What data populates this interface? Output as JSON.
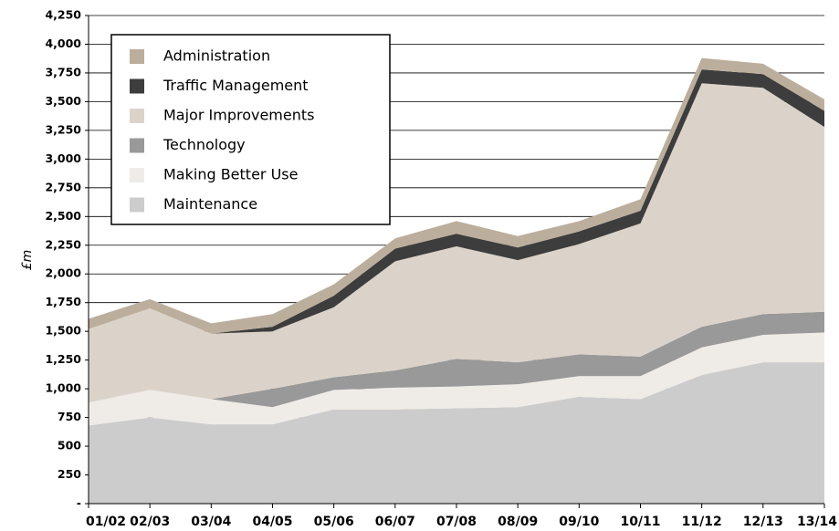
{
  "chart_data": {
    "type": "stacked_area",
    "y_label": "£m",
    "categories": [
      "01/02",
      "02/03",
      "03/04",
      "04/05",
      "05/06",
      "06/07",
      "07/08",
      "08/09",
      "09/10",
      "10/11",
      "11/12",
      "12/13",
      "13/14"
    ],
    "series": [
      {
        "name": "Maintenance",
        "color": "#cccccc",
        "values": [
          680,
          750,
          690,
          690,
          820,
          820,
          830,
          840,
          930,
          910,
          1120,
          1230,
          1230
        ]
      },
      {
        "name": "Making Better Use",
        "color": "#efebe7",
        "values": [
          200,
          240,
          220,
          150,
          170,
          190,
          190,
          200,
          180,
          200,
          240,
          240,
          260
        ]
      },
      {
        "name": "Technology",
        "color": "#999999",
        "values": [
          0,
          0,
          0,
          160,
          110,
          150,
          240,
          190,
          190,
          170,
          180,
          180,
          180
        ]
      },
      {
        "name": "Major Improvements",
        "color": "#dbd3ca",
        "values": [
          640,
          710,
          570,
          500,
          610,
          950,
          980,
          890,
          960,
          1160,
          2120,
          1970,
          1610
        ]
      },
      {
        "name": "Traffic Management",
        "color": "#3d3d3d",
        "values": [
          0,
          0,
          0,
          40,
          100,
          110,
          110,
          110,
          110,
          110,
          120,
          120,
          140
        ]
      },
      {
        "name": "Administration",
        "color": "#bcae9c",
        "values": [
          90,
          80,
          90,
          110,
          100,
          90,
          110,
          100,
          90,
          100,
          100,
          90,
          100
        ]
      }
    ],
    "ylim": [
      0,
      4250
    ],
    "yticks": [
      {
        "value": 0,
        "label": "-"
      },
      250,
      500,
      750,
      {
        "value": 1000,
        "label": "1,000"
      },
      {
        "value": 1250,
        "label": "1,250"
      },
      {
        "value": 1500,
        "label": "1,500"
      },
      {
        "value": 1750,
        "label": "1,750"
      },
      {
        "value": 2000,
        "label": "2,000"
      },
      {
        "value": 2250,
        "label": "2,250"
      },
      {
        "value": 2500,
        "label": "2,500"
      },
      {
        "value": 2750,
        "label": "2,750"
      },
      {
        "value": 3000,
        "label": "3,000"
      },
      {
        "value": 3250,
        "label": "3,250"
      },
      {
        "value": 3500,
        "label": "3,500"
      },
      {
        "value": 3750,
        "label": "3,750"
      },
      {
        "value": 4000,
        "label": "4,000"
      },
      {
        "value": 4250,
        "label": "4,250"
      }
    ],
    "grid": true
  }
}
